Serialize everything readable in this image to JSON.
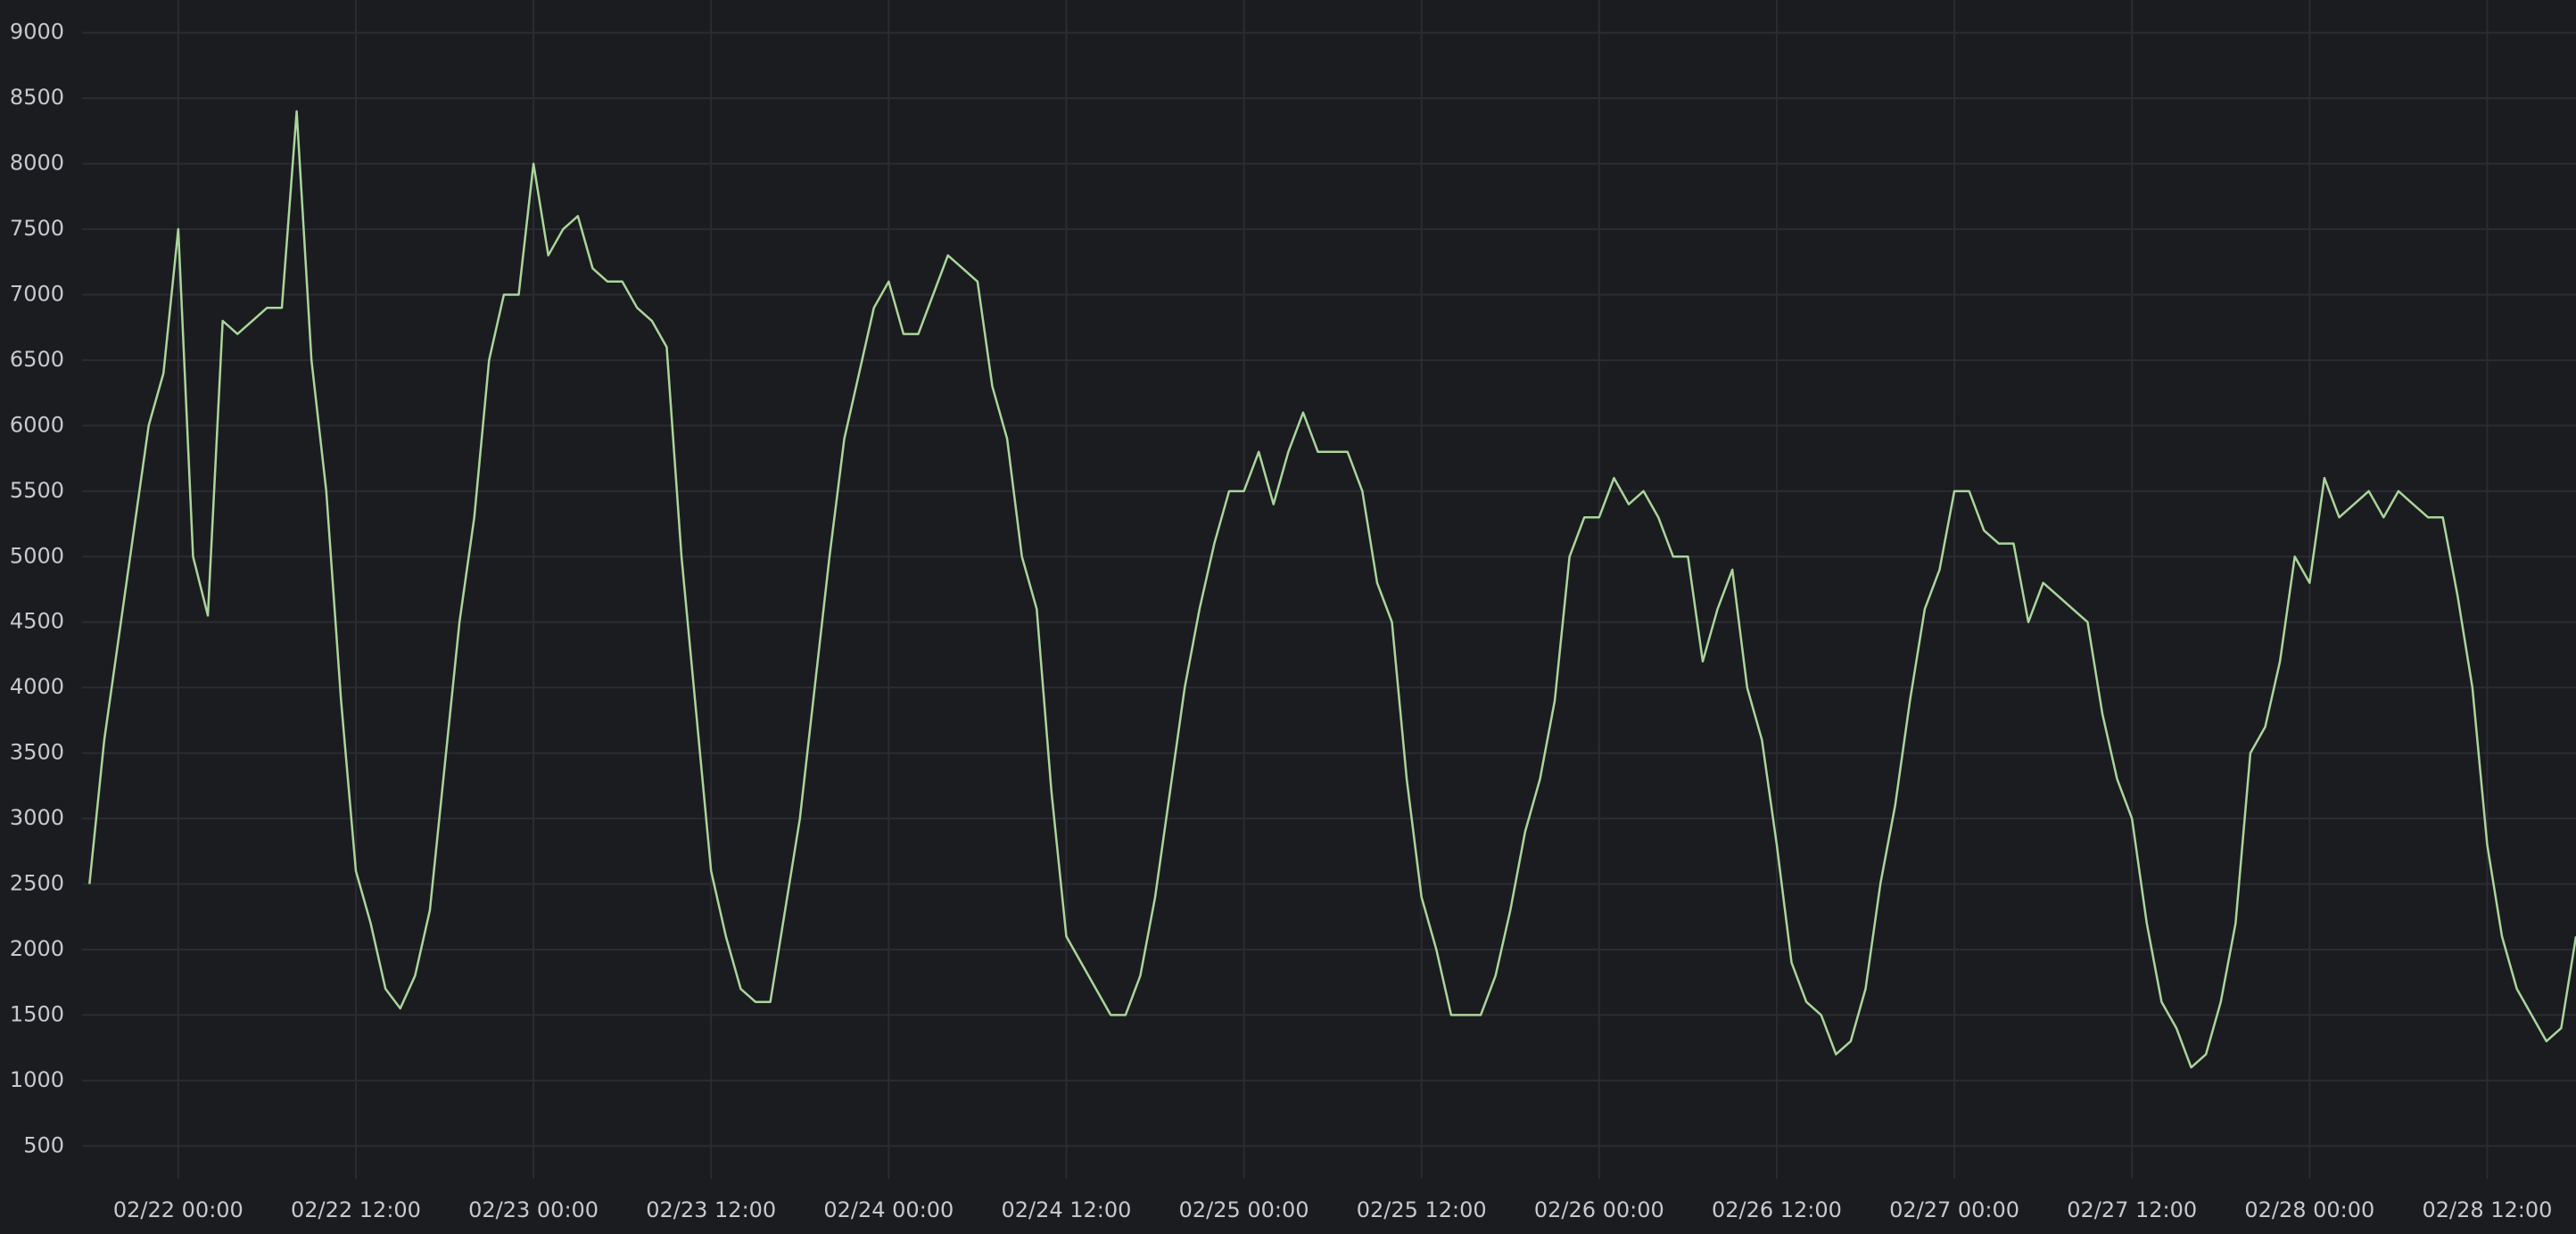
{
  "chart_data": {
    "type": "line",
    "color": "#a9d69b",
    "grid": true,
    "xlim": [
      "02/21 17:30",
      "02/28 18:00"
    ],
    "xticks": [
      "02/22 00:00",
      "02/22 12:00",
      "02/23 00:00",
      "02/23 12:00",
      "02/24 00:00",
      "02/24 12:00",
      "02/25 00:00",
      "02/25 12:00",
      "02/26 00:00",
      "02/26 12:00",
      "02/27 00:00",
      "02/27 12:00",
      "02/28 00:00",
      "02/28 12:00"
    ],
    "ylim": [
      250,
      9250
    ],
    "yticks": [
      500,
      1000,
      1500,
      2000,
      2500,
      3000,
      3500,
      4000,
      4500,
      5000,
      5500,
      6000,
      6500,
      7000,
      7500,
      8000,
      8500,
      9000
    ],
    "x": [
      "02/21 18:00",
      "02/21 19:00",
      "02/21 20:00",
      "02/21 21:00",
      "02/21 22:00",
      "02/21 23:00",
      "02/22 00:00",
      "02/22 01:00",
      "02/22 02:00",
      "02/22 03:00",
      "02/22 04:00",
      "02/22 05:00",
      "02/22 06:00",
      "02/22 07:00",
      "02/22 08:00",
      "02/22 09:00",
      "02/22 10:00",
      "02/22 11:00",
      "02/22 12:00",
      "02/22 13:00",
      "02/22 14:00",
      "02/22 15:00",
      "02/22 16:00",
      "02/22 17:00",
      "02/22 18:00",
      "02/22 19:00",
      "02/22 20:00",
      "02/22 21:00",
      "02/22 22:00",
      "02/22 23:00",
      "02/23 00:00",
      "02/23 01:00",
      "02/23 02:00",
      "02/23 03:00",
      "02/23 04:00",
      "02/23 05:00",
      "02/23 06:00",
      "02/23 07:00",
      "02/23 08:00",
      "02/23 09:00",
      "02/23 10:00",
      "02/23 11:00",
      "02/23 12:00",
      "02/23 13:00",
      "02/23 14:00",
      "02/23 15:00",
      "02/23 16:00",
      "02/23 17:00",
      "02/23 18:00",
      "02/23 19:00",
      "02/23 20:00",
      "02/23 21:00",
      "02/23 22:00",
      "02/23 23:00",
      "02/24 00:00",
      "02/24 01:00",
      "02/24 02:00",
      "02/24 03:00",
      "02/24 04:00",
      "02/24 05:00",
      "02/24 06:00",
      "02/24 07:00",
      "02/24 08:00",
      "02/24 09:00",
      "02/24 10:00",
      "02/24 11:00",
      "02/24 12:00",
      "02/24 13:00",
      "02/24 14:00",
      "02/24 15:00",
      "02/24 16:00",
      "02/24 17:00",
      "02/24 18:00",
      "02/24 19:00",
      "02/24 20:00",
      "02/24 21:00",
      "02/24 22:00",
      "02/24 23:00",
      "02/25 00:00",
      "02/25 01:00",
      "02/25 02:00",
      "02/25 03:00",
      "02/25 04:00",
      "02/25 05:00",
      "02/25 06:00",
      "02/25 07:00",
      "02/25 08:00",
      "02/25 09:00",
      "02/25 10:00",
      "02/25 11:00",
      "02/25 12:00",
      "02/25 13:00",
      "02/25 14:00",
      "02/25 15:00",
      "02/25 16:00",
      "02/25 17:00",
      "02/25 18:00",
      "02/25 19:00",
      "02/25 20:00",
      "02/25 21:00",
      "02/25 22:00",
      "02/25 23:00",
      "02/26 00:00",
      "02/26 01:00",
      "02/26 02:00",
      "02/26 03:00",
      "02/26 04:00",
      "02/26 05:00",
      "02/26 06:00",
      "02/26 07:00",
      "02/26 08:00",
      "02/26 09:00",
      "02/26 10:00",
      "02/26 11:00",
      "02/26 12:00",
      "02/26 13:00",
      "02/26 14:00",
      "02/26 15:00",
      "02/26 16:00",
      "02/26 17:00",
      "02/26 18:00",
      "02/26 19:00",
      "02/26 20:00",
      "02/26 21:00",
      "02/26 22:00",
      "02/26 23:00",
      "02/27 00:00",
      "02/27 01:00",
      "02/27 02:00",
      "02/27 03:00",
      "02/27 04:00",
      "02/27 05:00",
      "02/27 06:00",
      "02/27 07:00",
      "02/27 08:00",
      "02/27 09:00",
      "02/27 10:00",
      "02/27 11:00",
      "02/27 12:00",
      "02/27 13:00",
      "02/27 14:00",
      "02/27 15:00",
      "02/27 16:00",
      "02/27 17:00",
      "02/27 18:00",
      "02/27 19:00",
      "02/27 20:00",
      "02/27 21:00",
      "02/27 22:00",
      "02/27 23:00",
      "02/28 00:00",
      "02/28 01:00",
      "02/28 02:00",
      "02/28 03:00",
      "02/28 04:00",
      "02/28 05:00",
      "02/28 06:00",
      "02/28 07:00",
      "02/28 08:00",
      "02/28 09:00",
      "02/28 10:00",
      "02/28 11:00",
      "02/28 12:00",
      "02/28 13:00",
      "02/28 14:00",
      "02/28 15:00",
      "02/28 16:00",
      "02/28 17:00",
      "02/28 18:00"
    ],
    "values": [
      2500,
      3600,
      4400,
      5200,
      6000,
      6400,
      7500,
      5000,
      4550,
      6800,
      6700,
      6800,
      6900,
      6900,
      8400,
      6500,
      5500,
      3900,
      2600,
      2200,
      1700,
      1550,
      1800,
      2300,
      3400,
      4500,
      5300,
      6500,
      7000,
      7000,
      8000,
      7300,
      7500,
      7600,
      7200,
      7100,
      7100,
      6900,
      6800,
      6600,
      5000,
      3800,
      2600,
      2100,
      1700,
      1600,
      1600,
      2300,
      3000,
      4000,
      5000,
      5900,
      6400,
      6900,
      7100,
      6700,
      6700,
      7000,
      7300,
      7200,
      7100,
      6300,
      5900,
      5000,
      4600,
      3200,
      2100,
      1900,
      1700,
      1500,
      1500,
      1800,
      2400,
      3200,
      4000,
      4600,
      5100,
      5500,
      5500,
      5800,
      5400,
      5800,
      6100,
      5800,
      5800,
      5800,
      5500,
      4800,
      4500,
      3300,
      2400,
      2000,
      1500,
      1500,
      1500,
      1800,
      2300,
      2900,
      3300,
      3900,
      5000,
      5300,
      5300,
      5600,
      5400,
      5500,
      5300,
      5000,
      5000,
      4200,
      4600,
      4900,
      4000,
      3600,
      2800,
      1900,
      1600,
      1500,
      1200,
      1300,
      1700,
      2500,
      3100,
      3900,
      4600,
      4900,
      5500,
      5500,
      5200,
      5100,
      5100,
      4500,
      4800,
      4700,
      4600,
      4500,
      3800,
      3300,
      3000,
      2200,
      1600,
      1400,
      1100,
      1200,
      1600,
      2200,
      3500,
      3700,
      4200,
      5000,
      4800,
      5600,
      5300,
      5400,
      5500,
      5300,
      5500,
      5400,
      5300,
      5300,
      4700,
      4000,
      2800,
      2100,
      1700,
      1500,
      1300,
      1400,
      2100
    ]
  }
}
